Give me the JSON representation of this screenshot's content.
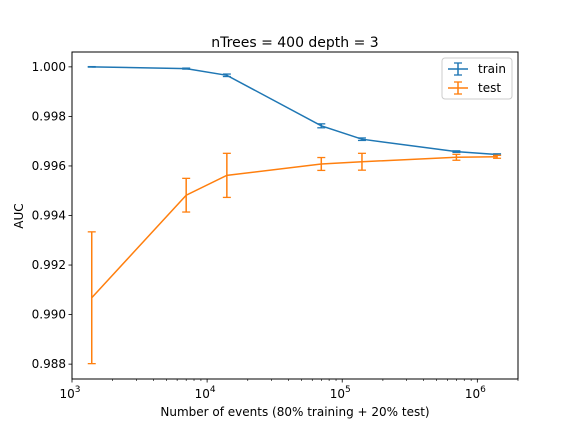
{
  "chart_data": {
    "type": "line",
    "title": "nTrees = 400 depth = 3",
    "xlabel": "Number of events (80% training + 20% test)",
    "ylabel": "AUC",
    "xscale": "log",
    "xlim": [
      1000,
      2000000
    ],
    "ylim": [
      0.9874,
      1.0006
    ],
    "x_ticks": [
      {
        "value": 1000,
        "base": "10",
        "exp": "3"
      },
      {
        "value": 10000,
        "base": "10",
        "exp": "4"
      },
      {
        "value": 100000,
        "base": "10",
        "exp": "5"
      },
      {
        "value": 1000000,
        "base": "10",
        "exp": "6"
      }
    ],
    "y_ticks": [
      {
        "value": 0.988,
        "label": "0.988"
      },
      {
        "value": 0.99,
        "label": "0.990"
      },
      {
        "value": 0.992,
        "label": "0.992"
      },
      {
        "value": 0.994,
        "label": "0.994"
      },
      {
        "value": 0.996,
        "label": "0.996"
      },
      {
        "value": 0.998,
        "label": "0.998"
      },
      {
        "value": 1.0,
        "label": "1.000"
      }
    ],
    "legend_position": "top-right",
    "series": [
      {
        "name": "train",
        "color": "#1f77b4",
        "x": [
          1400,
          7000,
          14000,
          70000,
          140000,
          700000,
          1400000
        ],
        "y": [
          1.0,
          0.99993,
          0.99966,
          0.99762,
          0.99708,
          0.99658,
          0.99646
        ],
        "err": [
          1e-05,
          2e-05,
          5e-05,
          8e-05,
          5e-05,
          3e-05,
          3e-05
        ]
      },
      {
        "name": "test",
        "color": "#ff7f0e",
        "x": [
          1400,
          7000,
          14000,
          70000,
          140000,
          700000,
          1400000
        ],
        "y": [
          0.99068,
          0.99482,
          0.99562,
          0.99608,
          0.99617,
          0.99635,
          0.99637
        ],
        "err": [
          0.00266,
          0.00068,
          0.00089,
          0.00026,
          0.00034,
          0.00012,
          6e-05
        ]
      }
    ]
  }
}
